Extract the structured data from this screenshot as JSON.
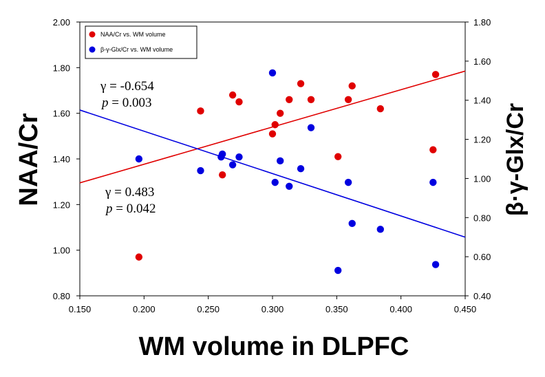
{
  "chart_data": {
    "type": "scatter",
    "title": "",
    "xlabel": "WM volume in DLPFC",
    "ylabel_left": "NAA/Cr",
    "ylabel_right": "β·γ-Glx/Cr",
    "xlim": [
      0.15,
      0.45
    ],
    "ylim_left": [
      0.8,
      2.0
    ],
    "ylim_right": [
      0.4,
      1.8
    ],
    "x_ticks": [
      "0.150",
      "0.200",
      "0.250",
      "0.300",
      "0.350",
      "0.400",
      "0.450"
    ],
    "y_left_ticks": [
      "0.80",
      "1.00",
      "1.20",
      "1.40",
      "1.60",
      "1.80",
      "2.00"
    ],
    "y_right_ticks": [
      "0.40",
      "0.60",
      "0.80",
      "1.00",
      "1.20",
      "1.40",
      "1.60",
      "1.80"
    ],
    "legend_position": "top-left",
    "series": [
      {
        "name": "NAA/Cr  vs.  WM volume",
        "axis": "left",
        "color": "#e00000",
        "points": [
          [
            0.196,
            0.97
          ],
          [
            0.244,
            1.61
          ],
          [
            0.261,
            1.33
          ],
          [
            0.269,
            1.68
          ],
          [
            0.274,
            1.65
          ],
          [
            0.3,
            1.51
          ],
          [
            0.302,
            1.55
          ],
          [
            0.306,
            1.6
          ],
          [
            0.313,
            1.66
          ],
          [
            0.322,
            1.73
          ],
          [
            0.33,
            1.66
          ],
          [
            0.351,
            1.41
          ],
          [
            0.359,
            1.66
          ],
          [
            0.362,
            1.72
          ],
          [
            0.384,
            1.62
          ],
          [
            0.425,
            1.44
          ],
          [
            0.427,
            1.77
          ]
        ],
        "fit_line": [
          [
            0.15,
            1.295
          ],
          [
            0.45,
            1.785
          ]
        ]
      },
      {
        "name": "β-γ-Glx/Cr  vs.  WM volume",
        "axis": "right",
        "color": "#0000e0",
        "points": [
          [
            0.196,
            1.1
          ],
          [
            0.244,
            1.04
          ],
          [
            0.26,
            1.11
          ],
          [
            0.261,
            1.125
          ],
          [
            0.269,
            1.07
          ],
          [
            0.274,
            1.11
          ],
          [
            0.3,
            1.54
          ],
          [
            0.302,
            0.98
          ],
          [
            0.306,
            1.09
          ],
          [
            0.313,
            0.96
          ],
          [
            0.322,
            1.05
          ],
          [
            0.33,
            1.26
          ],
          [
            0.351,
            0.53
          ],
          [
            0.359,
            0.98
          ],
          [
            0.362,
            0.77
          ],
          [
            0.384,
            0.74
          ],
          [
            0.425,
            0.98
          ],
          [
            0.427,
            0.56
          ]
        ],
        "fit_line": [
          [
            0.15,
            1.35
          ],
          [
            0.45,
            0.7
          ]
        ]
      }
    ],
    "annotations": [
      {
        "gamma": "γ = -0.654",
        "p_label": "p",
        "p_value": " = 0.003"
      },
      {
        "gamma": "γ = 0.483",
        "p_label": "p",
        "p_value": " = 0.042"
      }
    ]
  }
}
